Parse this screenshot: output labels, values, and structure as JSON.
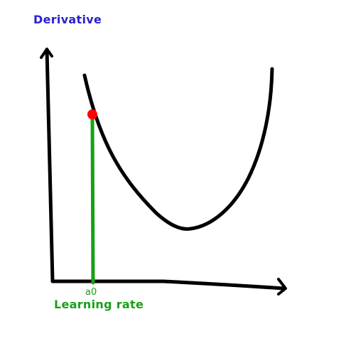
{
  "labels": {
    "y_axis": "Derivative",
    "x_axis": "Learning rate",
    "point_tick": "a0"
  },
  "colors": {
    "axis": "#000000",
    "curve": "#000000",
    "drop_line": "#17a017",
    "point": "#ff0000",
    "y_label": "#2a22cc",
    "x_label": "#17a017"
  }
}
